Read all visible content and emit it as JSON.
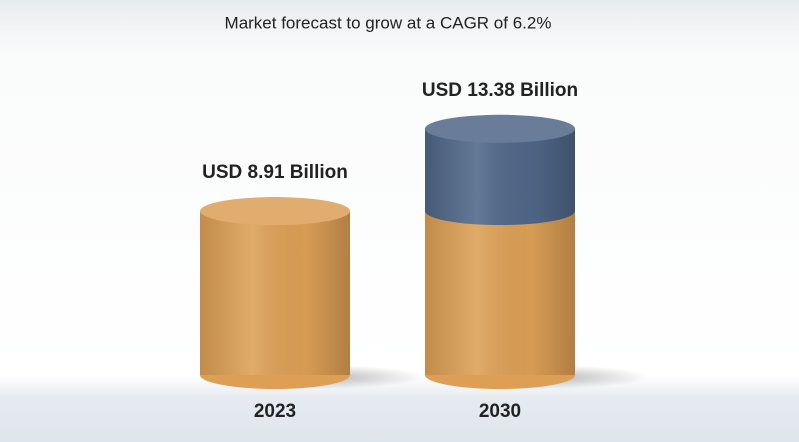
{
  "chart_data": {
    "type": "bar",
    "title": "Market forecast to grow at a CAGR of 6.2%",
    "categories": [
      "2023",
      "2030"
    ],
    "values": [
      8.91,
      13.38
    ],
    "value_labels": [
      "USD 8.91 Billion",
      "USD 13.38 Billion"
    ],
    "color": "#dc9f55",
    "growth_color": "#4f6788"
  }
}
